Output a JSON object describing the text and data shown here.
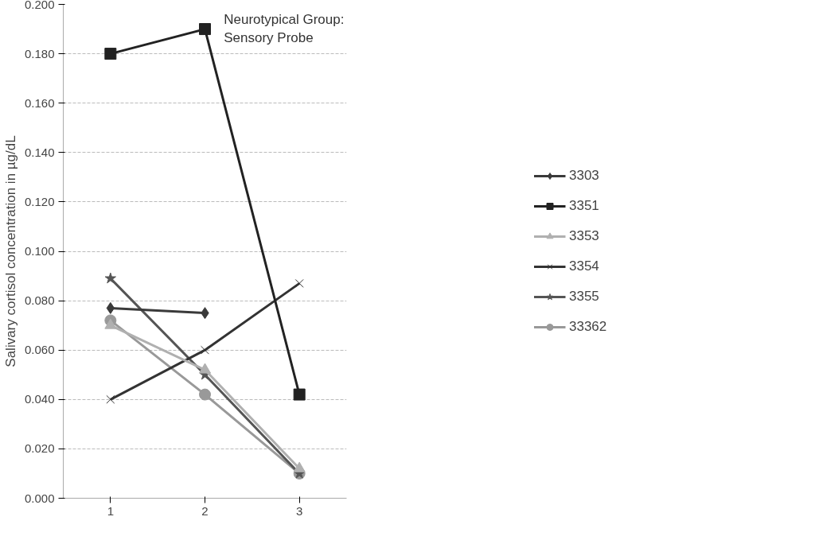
{
  "chart_data": {
    "type": "line",
    "ylabel": "Salivary cortisol concentration in µg/dL",
    "categories": [
      "1",
      "2",
      "3"
    ],
    "annotations": [
      "Neurotypical Group: Sensory Probe"
    ],
    "series": [
      {
        "name": "3303",
        "color": "#3a3a3a",
        "marker": "diamond",
        "values": [
          0.077,
          0.075,
          null
        ]
      },
      {
        "name": "3351",
        "color": "#222222",
        "marker": "square",
        "values": [
          0.18,
          0.19,
          0.042
        ]
      },
      {
        "name": "3353",
        "color": "#b0b0b0",
        "marker": "triangle",
        "values": [
          0.07,
          0.052,
          0.012
        ]
      },
      {
        "name": "3354",
        "color": "#333333",
        "marker": "cross",
        "values": [
          0.04,
          0.06,
          0.087
        ]
      },
      {
        "name": "3355",
        "color": "#555555",
        "marker": "star",
        "values": [
          0.089,
          0.05,
          0.01
        ]
      },
      {
        "name": "33362",
        "color": "#999999",
        "marker": "circle",
        "values": [
          0.072,
          0.042,
          0.01
        ]
      }
    ],
    "ylim": [
      0,
      0.2
    ],
    "yticks": [
      {
        "value": 0,
        "label": "0.000"
      },
      {
        "value": 0.02,
        "label": "0.020"
      },
      {
        "value": 0.04,
        "label": "0.040"
      },
      {
        "value": 0.06,
        "label": "0.060"
      },
      {
        "value": 0.08,
        "label": "0.080"
      },
      {
        "value": 0.1,
        "label": "0.100"
      },
      {
        "value": 0.12,
        "label": "0.120"
      },
      {
        "value": 0.14,
        "label": "0.140"
      },
      {
        "value": 0.16,
        "label": "0.160"
      },
      {
        "value": 0.18,
        "label": "0.180"
      },
      {
        "value": 0.2,
        "label": "0.200"
      }
    ],
    "grid": "y",
    "legend": "right",
    "line_style": "solid"
  }
}
